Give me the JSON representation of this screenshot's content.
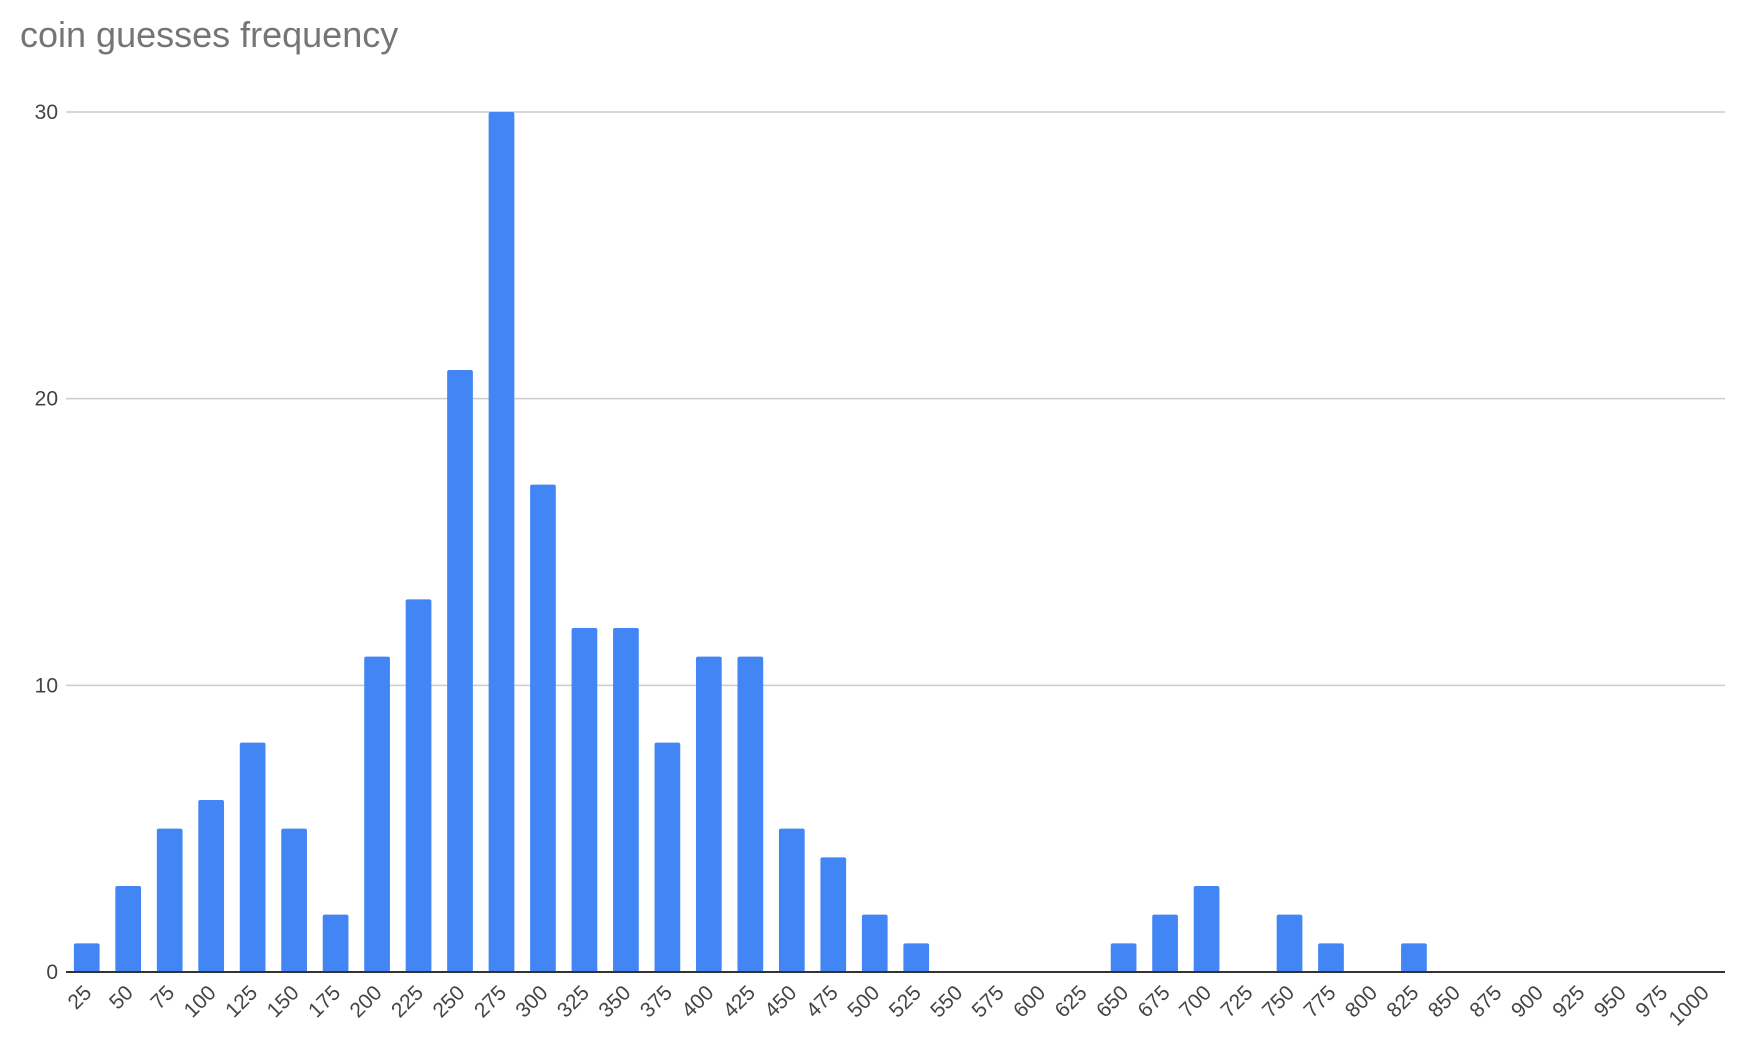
{
  "chart_data": {
    "type": "bar",
    "title": "coin guesses frequency",
    "xlabel": "",
    "ylabel": "",
    "categories": [
      "25",
      "50",
      "75",
      "100",
      "125",
      "150",
      "175",
      "200",
      "225",
      "250",
      "275",
      "300",
      "325",
      "350",
      "375",
      "400",
      "425",
      "450",
      "475",
      "500",
      "525",
      "550",
      "575",
      "600",
      "625",
      "650",
      "675",
      "700",
      "725",
      "750",
      "775",
      "800",
      "825",
      "850",
      "875",
      "900",
      "925",
      "950",
      "975",
      "1000"
    ],
    "values": [
      1,
      3,
      5,
      6,
      8,
      5,
      2,
      11,
      13,
      21,
      30,
      17,
      12,
      12,
      8,
      11,
      11,
      5,
      4,
      2,
      1,
      0,
      0,
      0,
      0,
      1,
      2,
      3,
      0,
      2,
      1,
      0,
      1,
      0,
      0,
      0,
      0,
      0,
      0,
      0
    ],
    "ylim": [
      0,
      30
    ],
    "yticks": [
      0,
      10,
      20,
      30
    ],
    "grid": true,
    "legend": "none",
    "bar_color": "#4285f4",
    "grid_color": "#cccccc",
    "axis_color": "#333333"
  }
}
